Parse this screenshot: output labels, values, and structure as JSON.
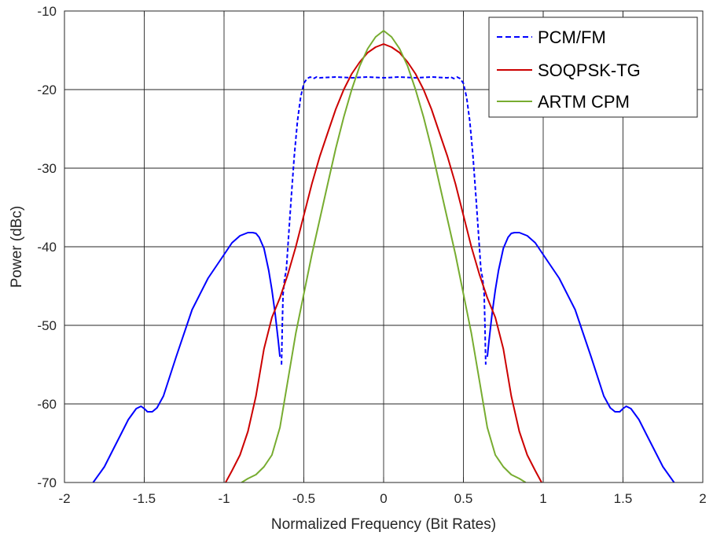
{
  "chart_data": {
    "type": "line",
    "title": "",
    "xlabel": "Normalized Frequency (Bit Rates)",
    "ylabel": "Power (dBc)",
    "xlim": [
      -2,
      2
    ],
    "ylim": [
      -70,
      -10
    ],
    "xticks": [
      -2,
      -1.5,
      -1,
      -0.5,
      0,
      0.5,
      1,
      1.5,
      2
    ],
    "yticks": [
      -70,
      -60,
      -50,
      -40,
      -30,
      -20,
      -10
    ],
    "xtick_labels": [
      "-2",
      "-1.5",
      "-1",
      "-0.5",
      "0",
      "0.5",
      "1",
      "1.5",
      "2"
    ],
    "ytick_labels": [
      "-70",
      "-60",
      "-50",
      "-40",
      "-30",
      "-20",
      "-10"
    ],
    "grid": true,
    "legend_position": "top-right",
    "series": [
      {
        "name": "PCM/FM",
        "color": "#0000ff",
        "style": "dashed",
        "x": [
          -0.64,
          -0.635,
          -0.63,
          -0.62,
          -0.61,
          -0.6,
          -0.58,
          -0.56,
          -0.54,
          -0.52,
          -0.5,
          -0.48,
          -0.46,
          -0.44,
          -0.42,
          -0.4,
          -0.3,
          -0.2,
          -0.1,
          0,
          0.1,
          0.2,
          0.3,
          0.4,
          0.42,
          0.44,
          0.46,
          0.48,
          0.5,
          0.52,
          0.54,
          0.56,
          0.58,
          0.6,
          0.61,
          0.62,
          0.63,
          0.635,
          0.64
        ],
        "y": [
          -55,
          -50,
          -46,
          -44,
          -43,
          -40,
          -34,
          -28.5,
          -24,
          -21,
          -19.2,
          -18.6,
          -18.4,
          -18.6,
          -18.4,
          -18.5,
          -18.4,
          -18.5,
          -18.4,
          -18.5,
          -18.4,
          -18.5,
          -18.4,
          -18.5,
          -18.4,
          -18.6,
          -18.4,
          -18.6,
          -19.2,
          -21,
          -24,
          -28.5,
          -34,
          -40,
          -43,
          -44,
          -46,
          -50,
          -55
        ]
      },
      {
        "name": "PCM/FM",
        "color": "#0000ff",
        "style": "solid",
        "x": [
          -1.82,
          -1.75,
          -1.7,
          -1.65,
          -1.6,
          -1.55,
          -1.52,
          -1.5,
          -1.48,
          -1.45,
          -1.42,
          -1.38,
          -1.3,
          -1.2,
          -1.1,
          -1.0,
          -0.95,
          -0.9,
          -0.85,
          -0.82,
          -0.8,
          -0.78,
          -0.75,
          -0.72,
          -0.7,
          -0.68,
          -0.66,
          -0.65
        ],
        "y": [
          -70,
          -68,
          -66,
          -64,
          -62,
          -60.6,
          -60.3,
          -60.6,
          -61,
          -61,
          -60.5,
          -59,
          -54,
          -48,
          -44,
          -41,
          -39.5,
          -38.6,
          -38.2,
          -38.2,
          -38.3,
          -38.8,
          -40.2,
          -43,
          -45.5,
          -48.5,
          -52,
          -54
        ]
      },
      {
        "name": "PCM/FM",
        "color": "#0000ff",
        "style": "solid",
        "x": [
          0.65,
          0.66,
          0.68,
          0.7,
          0.72,
          0.75,
          0.78,
          0.8,
          0.82,
          0.85,
          0.9,
          0.95,
          1.0,
          1.1,
          1.2,
          1.3,
          1.38,
          1.42,
          1.45,
          1.48,
          1.5,
          1.52,
          1.55,
          1.6,
          1.65,
          1.7,
          1.75,
          1.82
        ],
        "y": [
          -54,
          -52,
          -48.5,
          -45.5,
          -43,
          -40.2,
          -38.8,
          -38.3,
          -38.2,
          -38.2,
          -38.6,
          -39.5,
          -41,
          -44,
          -48,
          -54,
          -59,
          -60.5,
          -61,
          -61,
          -60.6,
          -60.3,
          -60.6,
          -62,
          -64,
          -66,
          -68,
          -70
        ]
      },
      {
        "name": "SOQPSK-TG",
        "color": "#cc0000",
        "style": "solid",
        "x": [
          -0.99,
          -0.95,
          -0.9,
          -0.85,
          -0.8,
          -0.75,
          -0.7,
          -0.65,
          -0.6,
          -0.55,
          -0.5,
          -0.45,
          -0.4,
          -0.35,
          -0.3,
          -0.25,
          -0.2,
          -0.15,
          -0.1,
          -0.05,
          0,
          0.05,
          0.1,
          0.15,
          0.2,
          0.25,
          0.3,
          0.35,
          0.4,
          0.45,
          0.5,
          0.55,
          0.6,
          0.65,
          0.7,
          0.75,
          0.8,
          0.85,
          0.9,
          0.95,
          0.99
        ],
        "y": [
          -70,
          -68.5,
          -66.5,
          -63.5,
          -59,
          -53,
          -49,
          -46.5,
          -43.5,
          -40,
          -36,
          -32,
          -28.5,
          -25.5,
          -22.5,
          -20,
          -18,
          -16.5,
          -15.3,
          -14.6,
          -14.2,
          -14.6,
          -15.3,
          -16.5,
          -18,
          -20,
          -22.5,
          -25.5,
          -28.5,
          -32,
          -36,
          -40,
          -43.5,
          -46.5,
          -49,
          -53,
          -59,
          -63.5,
          -66.5,
          -68.5,
          -70
        ]
      },
      {
        "name": "ARTM CPM",
        "color": "#77ac30",
        "style": "solid",
        "x": [
          -0.89,
          -0.85,
          -0.8,
          -0.75,
          -0.7,
          -0.65,
          -0.6,
          -0.55,
          -0.5,
          -0.45,
          -0.4,
          -0.35,
          -0.3,
          -0.25,
          -0.2,
          -0.15,
          -0.1,
          -0.05,
          0,
          0.05,
          0.1,
          0.15,
          0.2,
          0.25,
          0.3,
          0.35,
          0.4,
          0.45,
          0.5,
          0.55,
          0.6,
          0.65,
          0.7,
          0.75,
          0.8,
          0.85,
          0.89
        ],
        "y": [
          -70,
          -69.5,
          -69,
          -68,
          -66.5,
          -63,
          -57,
          -51,
          -46,
          -41,
          -36.5,
          -32,
          -27.5,
          -23.5,
          -20,
          -17,
          -14.8,
          -13.3,
          -12.5,
          -13.3,
          -14.8,
          -17,
          -20,
          -23.5,
          -27.5,
          -32,
          -36.5,
          -41,
          -46,
          -51,
          -57,
          -63,
          -66.5,
          -68,
          -69,
          -69.5,
          -70
        ]
      }
    ]
  }
}
